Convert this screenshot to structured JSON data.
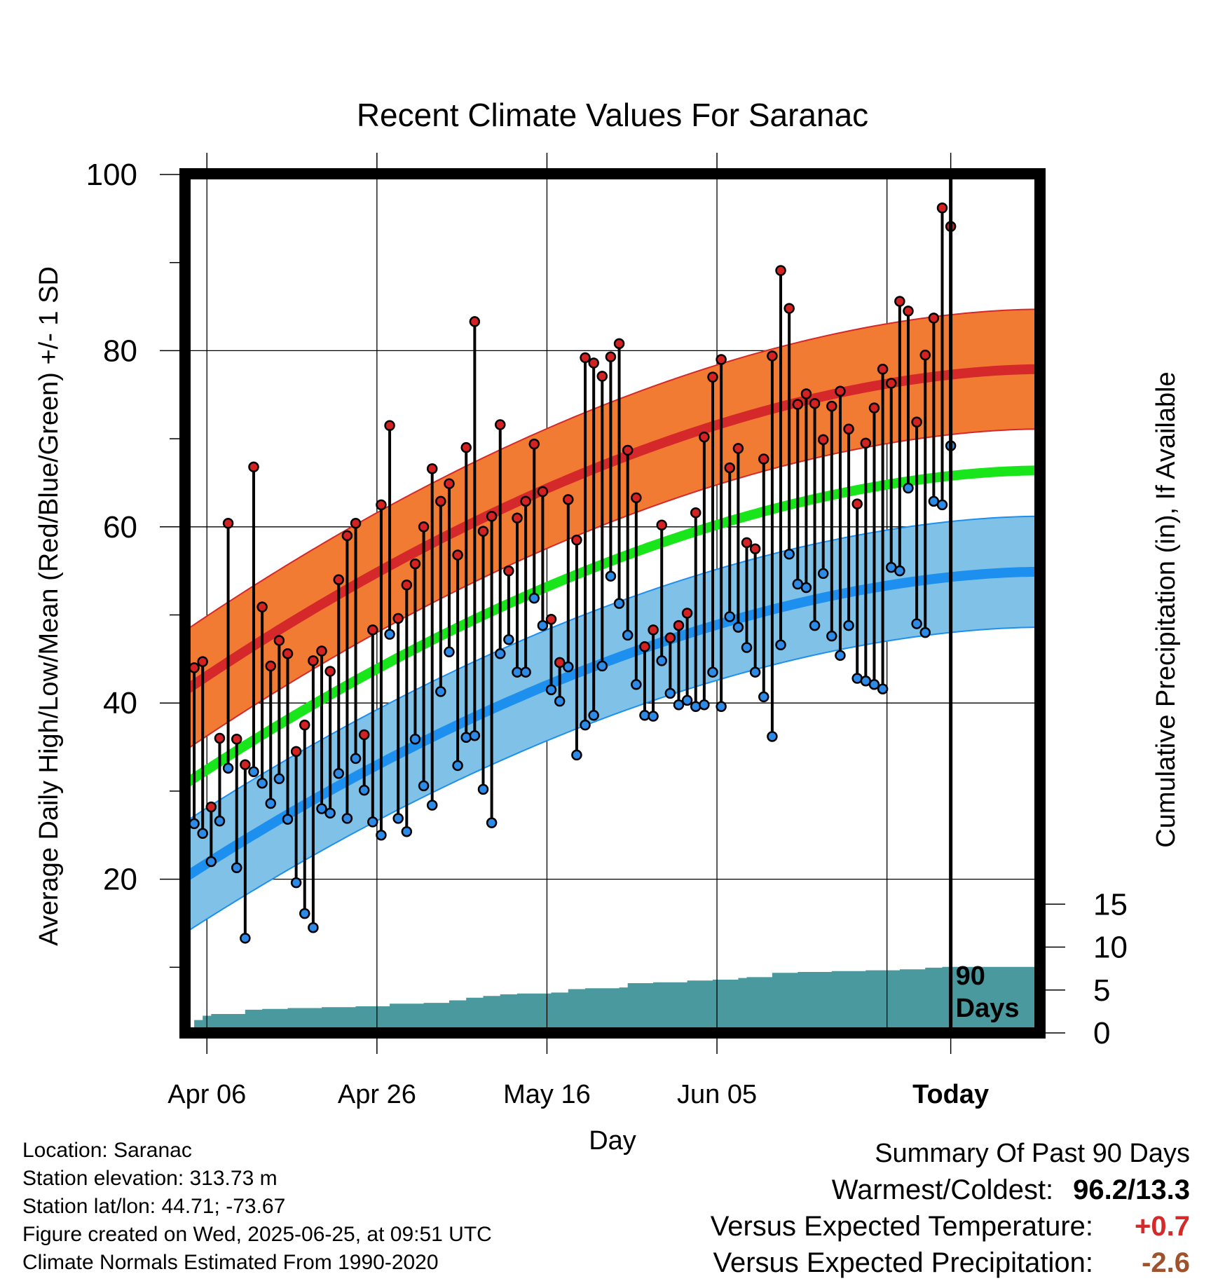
{
  "chart_data": {
    "type": "line",
    "title": "Recent Climate Values For Saranac",
    "xlabel": "Day",
    "ylabel": "Average Daily High/Low/Mean (Red/Blue/Green) +/- 1 SD",
    "y2label": "Cumulative Precipitation (in), If Available",
    "xticks": [
      "Apr 06",
      "Apr 26",
      "May 16",
      "Jun 05",
      "Today"
    ],
    "yticks": [
      20,
      40,
      60,
      80,
      100
    ],
    "y2ticks": [
      0,
      5,
      10,
      15
    ],
    "ylim": [
      0,
      100
    ],
    "y2lim": [
      0,
      50
    ],
    "grid": true,
    "annotation": "90 Days",
    "daily_high": [
      44.0,
      44.7,
      28.2,
      36.0,
      60.4,
      35.9,
      33.0,
      66.8,
      50.9,
      44.2,
      47.1,
      45.6,
      34.5,
      37.5,
      44.8,
      45.9,
      43.6,
      54.0,
      59.0,
      60.4,
      36.4,
      48.3,
      62.5,
      71.5,
      49.6,
      53.4,
      55.8,
      60.0,
      66.6,
      62.9,
      64.9,
      56.8,
      69.0,
      83.3,
      59.5,
      61.2,
      71.6,
      55.0,
      61.0,
      62.9,
      69.4,
      64.0,
      49.5,
      44.6,
      63.1,
      58.5,
      79.2,
      78.6,
      77.1,
      79.3,
      80.8,
      68.7,
      63.3,
      46.4,
      48.3,
      60.2,
      47.4,
      48.8,
      50.2,
      61.6,
      70.2,
      77.0,
      79.0,
      66.7,
      68.9,
      58.2,
      57.5,
      67.7,
      79.4,
      89.1,
      84.8,
      73.9,
      75.1,
      74.0,
      69.9,
      73.7,
      75.4,
      71.1,
      62.6,
      69.5,
      73.5,
      77.9,
      76.3,
      85.6,
      84.5,
      71.9,
      79.5,
      83.7,
      96.2,
      94.1
    ],
    "daily_low": [
      26.3,
      25.2,
      22.0,
      26.6,
      32.6,
      21.3,
      13.3,
      32.2,
      30.9,
      28.6,
      31.4,
      26.8,
      19.6,
      16.1,
      14.5,
      28.0,
      27.5,
      32.0,
      26.9,
      33.7,
      30.1,
      26.5,
      25.0,
      47.8,
      26.9,
      25.4,
      35.9,
      30.6,
      28.4,
      41.3,
      45.8,
      32.9,
      36.1,
      36.3,
      30.2,
      26.4,
      45.6,
      47.2,
      43.5,
      43.5,
      51.9,
      48.8,
      41.5,
      40.2,
      44.1,
      34.1,
      37.5,
      38.6,
      44.2,
      54.4,
      51.3,
      47.7,
      42.1,
      38.6,
      38.5,
      44.8,
      41.1,
      39.8,
      40.3,
      39.6,
      39.8,
      43.5,
      39.6,
      49.8,
      48.6,
      46.3,
      43.5,
      40.7,
      36.2,
      46.6,
      56.9,
      53.5,
      53.1,
      48.8,
      54.7,
      47.6,
      45.4,
      48.8,
      42.8,
      42.5,
      42.1,
      41.6,
      55.4,
      55.0,
      64.4,
      49.0,
      48.0,
      62.9,
      62.5,
      69.2
    ],
    "normal_high_start": 41.4,
    "normal_high_end": 77.9,
    "normal_high_sd": 6.8,
    "normal_low_start": 20.2,
    "normal_low_end": 54.9,
    "normal_low_sd": 6.3,
    "normal_mean_start": 30.8,
    "normal_mean_end": 66.4,
    "cumulative_precip_steps": [
      [
        0,
        0.0
      ],
      [
        1,
        1.5
      ],
      [
        2,
        2.0
      ],
      [
        3,
        2.2
      ],
      [
        7,
        2.7
      ],
      [
        9,
        2.8
      ],
      [
        12,
        2.9
      ],
      [
        16,
        3.0
      ],
      [
        20,
        3.1
      ],
      [
        24,
        3.4
      ],
      [
        28,
        3.5
      ],
      [
        31,
        3.8
      ],
      [
        33,
        4.1
      ],
      [
        35,
        4.3
      ],
      [
        37,
        4.5
      ],
      [
        39,
        4.6
      ],
      [
        43,
        4.7
      ],
      [
        45,
        5.1
      ],
      [
        47,
        5.2
      ],
      [
        51,
        5.3
      ],
      [
        52,
        5.8
      ],
      [
        55,
        5.9
      ],
      [
        59,
        6.1
      ],
      [
        62,
        6.2
      ],
      [
        65,
        6.4
      ],
      [
        66,
        6.5
      ],
      [
        69,
        7.0
      ],
      [
        72,
        7.1
      ],
      [
        76,
        7.2
      ],
      [
        80,
        7.3
      ],
      [
        84,
        7.4
      ],
      [
        87,
        7.6
      ],
      [
        89,
        7.7
      ],
      [
        100,
        7.7
      ]
    ],
    "colors": {
      "high_band": "#f27b33",
      "high_line": "#d4282a",
      "mean_line": "#19e61a",
      "low_band": "#80c1e8",
      "low_line": "#1c8fef",
      "precip": "#4a999f",
      "high_marker": "#d42222",
      "low_marker": "#2d8ae6"
    }
  },
  "footer": {
    "location": "Location: Saranac",
    "elevation": "Station elevation: 313.73 m",
    "latlon": "Station lat/lon: 44.71; -73.67",
    "created": "Figure created on Wed, 2025-06-25, at 09:51 UTC",
    "normals": "Climate Normals Estimated From 1990-2020"
  },
  "summary": {
    "title": "Summary Of Past 90 Days",
    "warmest_coldest_label": "Warmest/Coldest:",
    "warmest_coldest_value": "96.2/13.3",
    "temp_label": "Versus Expected Temperature:",
    "temp_value": "+0.7",
    "temp_color": "#d42a2a",
    "precip_label": "Versus Expected Precipitation:",
    "precip_value": "-2.6",
    "precip_color": "#a0522d"
  }
}
